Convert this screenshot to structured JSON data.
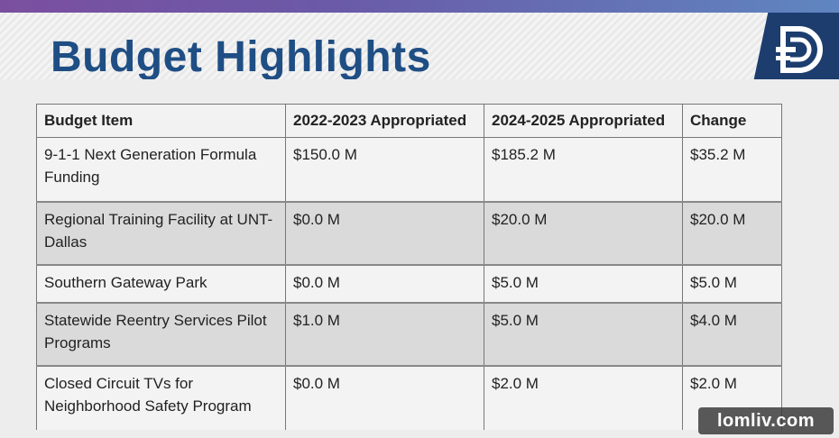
{
  "slide": {
    "title": "Budget Highlights"
  },
  "table": {
    "headers": [
      "Budget Item",
      "2022-2023 Appropriated",
      "2024-2025 Appropriated",
      "Change"
    ],
    "rows": [
      [
        "9-1-1 Next Generation Formula Funding",
        "$150.0 M",
        "$185.2 M",
        "$35.2 M"
      ],
      [
        "Regional Training Facility at UNT-Dallas",
        "$0.0 M",
        "$20.0 M",
        "$20.0 M"
      ],
      [
        "Southern Gateway Park",
        "$0.0 M",
        "$5.0 M",
        "$5.0 M"
      ],
      [
        "Statewide Reentry Services Pilot Programs",
        "$1.0 M",
        "$5.0 M",
        "$4.0 M"
      ],
      [
        "Closed Circuit TVs for Neighborhood Safety Program",
        "$0.0 M",
        "$2.0 M",
        "$2.0 M"
      ]
    ]
  },
  "logo": {
    "icon": "city-d-logo-icon",
    "color": "#1c3d6e"
  },
  "watermark": {
    "text": "lomliv.com"
  },
  "colors": {
    "title": "#1f4e84",
    "band": "#6a5aa8"
  }
}
